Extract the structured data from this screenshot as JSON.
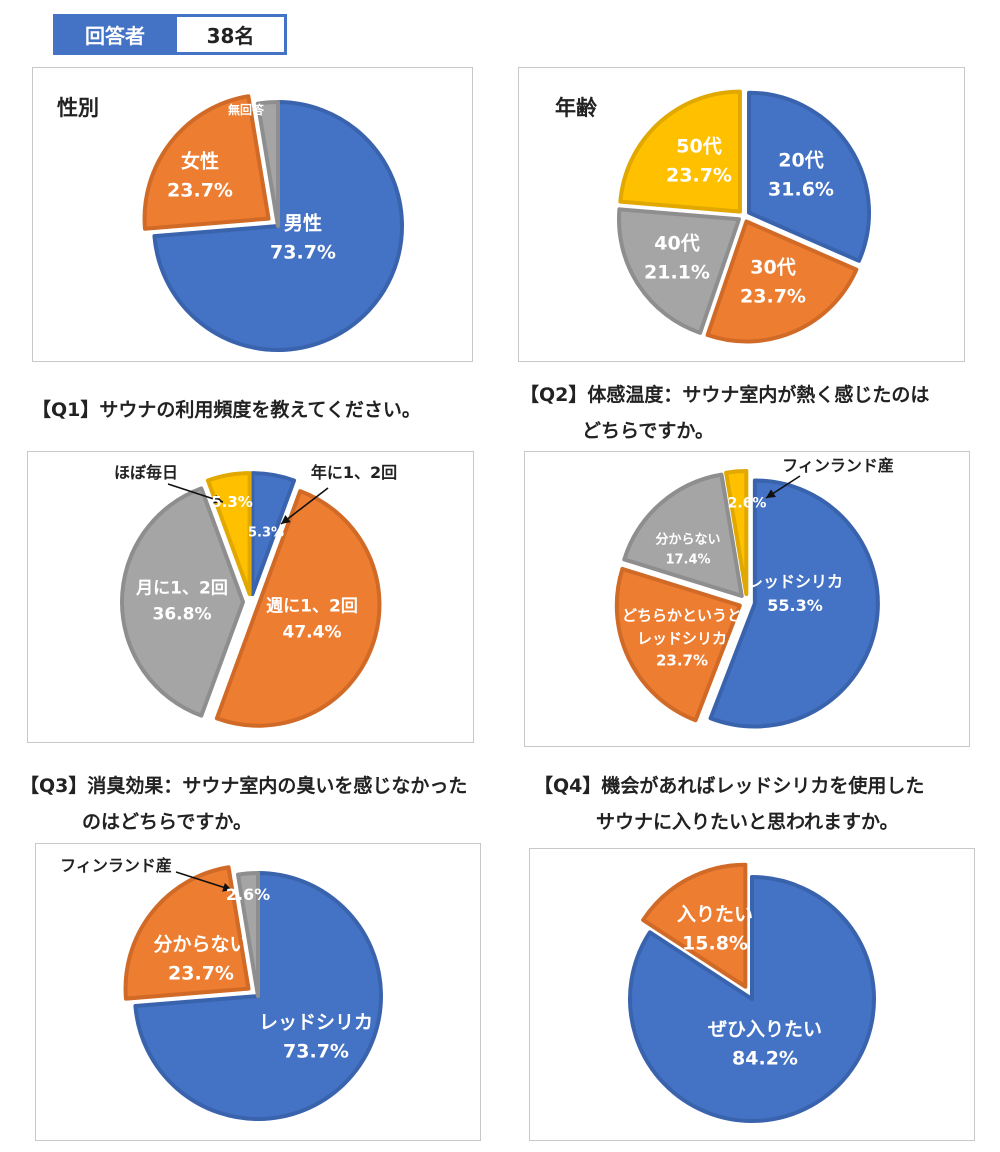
{
  "respondents": {
    "label": "回答者",
    "value": "38名"
  },
  "colors": {
    "blue": "#4472c4",
    "orange": "#ed7d31",
    "gray": "#a5a5a5",
    "yellow": "#ffc000",
    "frame": "#4472c4"
  },
  "questions": {
    "q1": "【Q1】サウナの利用頻度を教えてください。",
    "q2_line1": "【Q2】体感温度：サウナ室内が熱く感じたのは",
    "q2_line2": "どちらですか。",
    "q3_line1": "【Q3】消臭効果：サウナ室内の臭いを感じなかった",
    "q3_line2": "のはどちらですか。",
    "q4_line1": "【Q4】機会があればレッドシリカを使用した",
    "q4_line2": "サウナに入りたいと思われますか。"
  },
  "chart_data": [
    {
      "type": "pie",
      "title": "性別",
      "slices": [
        {
          "label": "男性",
          "pct_text": "73.7%",
          "value": 73.7,
          "color": "#4472c4"
        },
        {
          "label": "女性",
          "pct_text": "23.7%",
          "value": 23.7,
          "color": "#ed7d31"
        },
        {
          "label": "無回答",
          "pct_text": "",
          "value": 2.6,
          "color": "#a5a5a5"
        }
      ]
    },
    {
      "type": "pie",
      "title": "年齢",
      "slices": [
        {
          "label": "20代",
          "pct_text": "31.6%",
          "value": 31.6,
          "color": "#4472c4"
        },
        {
          "label": "30代",
          "pct_text": "23.7%",
          "value": 23.7,
          "color": "#ed7d31"
        },
        {
          "label": "40代",
          "pct_text": "21.1%",
          "value": 21.1,
          "color": "#a5a5a5"
        },
        {
          "label": "50代",
          "pct_text": "23.7%",
          "value": 23.7,
          "color": "#ffc000"
        }
      ]
    },
    {
      "type": "pie",
      "title": "",
      "slices": [
        {
          "label": "年に1、2回",
          "pct_text": "5.3%",
          "value": 5.3,
          "color": "#4472c4"
        },
        {
          "label": "週に1、2回",
          "pct_text": "47.4%",
          "value": 47.4,
          "color": "#ed7d31"
        },
        {
          "label": "月に1、2回",
          "pct_text": "36.8%",
          "value": 36.8,
          "color": "#a5a5a5"
        },
        {
          "label": "ほぼ毎日",
          "pct_text": "5.3%",
          "value": 5.3,
          "color": "#ffc000"
        }
      ]
    },
    {
      "type": "pie",
      "title": "",
      "slices": [
        {
          "label": "レッドシリカ",
          "pct_text": "55.3%",
          "value": 55.3,
          "color": "#4472c4"
        },
        {
          "label": "どちらかというとレッドシリカ",
          "label_line1": "どちらかというと",
          "label_line2": "レッドシリカ",
          "pct_text": "23.7%",
          "value": 23.7,
          "color": "#ed7d31"
        },
        {
          "label": "分からない",
          "pct_text": "17.4%",
          "value": 17.4,
          "color": "#a5a5a5"
        },
        {
          "label": "フィンランド産",
          "pct_text": "2.6%",
          "value": 2.6,
          "color": "#ffc000"
        }
      ]
    },
    {
      "type": "pie",
      "title": "",
      "slices": [
        {
          "label": "レッドシリカ",
          "pct_text": "73.7%",
          "value": 73.7,
          "color": "#4472c4"
        },
        {
          "label": "分からない",
          "pct_text": "23.7%",
          "value": 23.7,
          "color": "#ed7d31"
        },
        {
          "label": "フィンランド産",
          "pct_text": "2.6%",
          "value": 2.6,
          "color": "#a5a5a5"
        }
      ]
    },
    {
      "type": "pie",
      "title": "",
      "slices": [
        {
          "label": "ぜひ入りたい",
          "pct_text": "84.2%",
          "value": 84.2,
          "color": "#4472c4"
        },
        {
          "label": "入りたい",
          "pct_text": "15.8%",
          "value": 15.8,
          "color": "#ed7d31"
        }
      ]
    }
  ]
}
